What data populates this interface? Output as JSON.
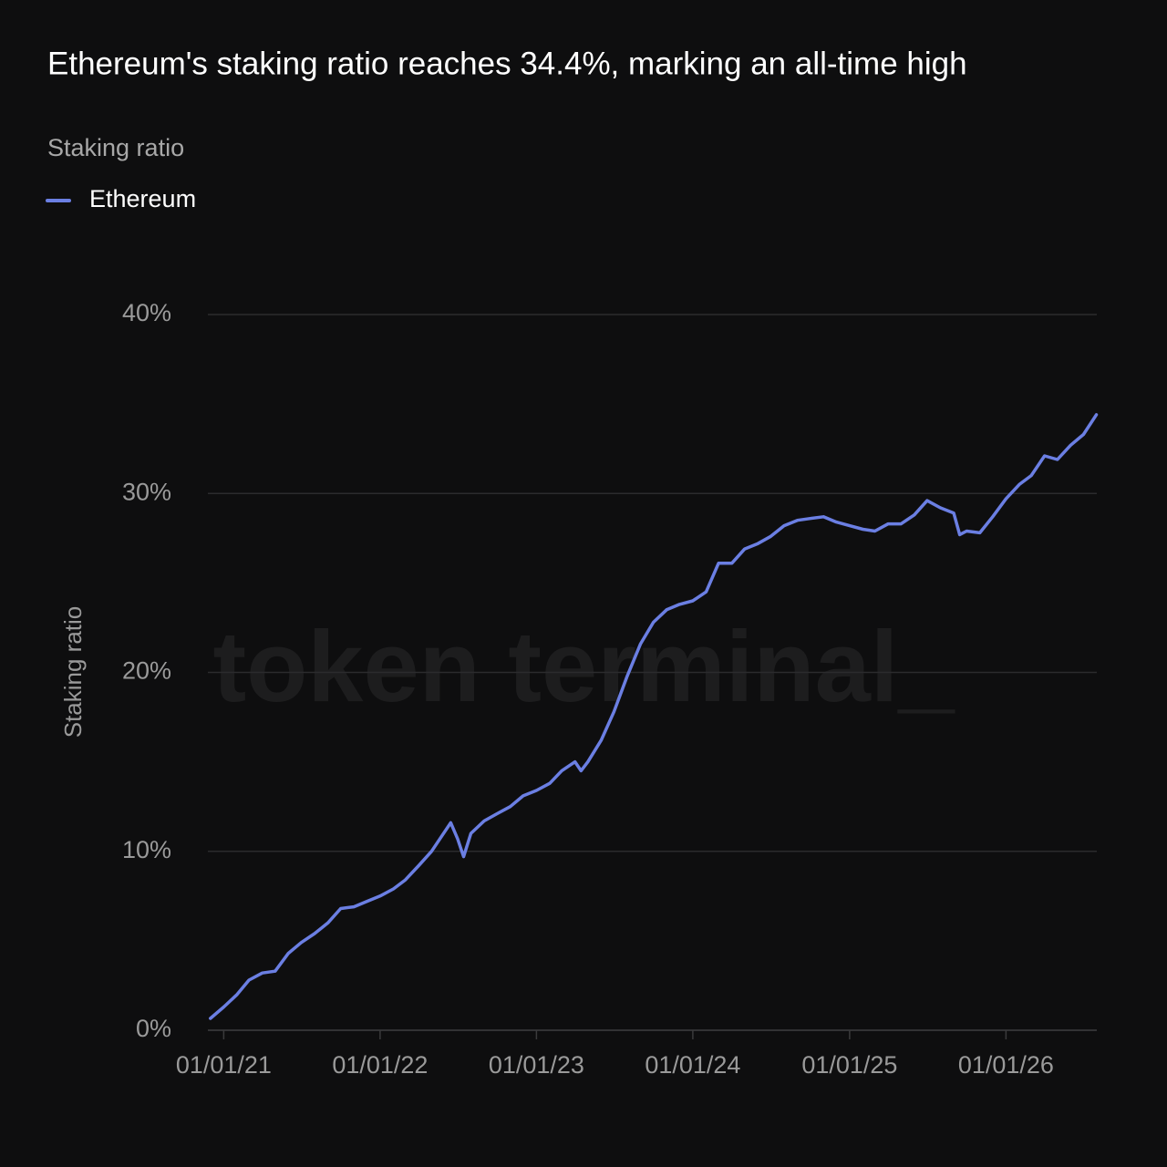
{
  "chart_data": {
    "type": "line",
    "title": "Ethereum's staking ratio reaches 34.4%, marking an all-time high",
    "subtitle": "Staking ratio",
    "y_label": "Staking ratio",
    "watermark": "token terminal_",
    "x": [
      "2020-12-01",
      "2021-01-01",
      "2021-02-01",
      "2021-03-01",
      "2021-04-01",
      "2021-05-01",
      "2021-06-01",
      "2021-07-01",
      "2021-08-01",
      "2021-09-01",
      "2021-10-01",
      "2021-11-01",
      "2021-12-01",
      "2022-01-01",
      "2022-02-01",
      "2022-03-01",
      "2022-04-01",
      "2022-05-01",
      "2022-06-01",
      "2022-06-15",
      "2022-07-01",
      "2022-07-15",
      "2022-08-01",
      "2022-09-01",
      "2022-10-01",
      "2022-11-01",
      "2022-12-01",
      "2023-01-01",
      "2023-02-01",
      "2023-03-01",
      "2023-04-01",
      "2023-04-15",
      "2023-05-01",
      "2023-06-01",
      "2023-07-01",
      "2023-08-01",
      "2023-09-01",
      "2023-10-01",
      "2023-11-01",
      "2023-12-01",
      "2024-01-01",
      "2024-02-01",
      "2024-03-01",
      "2024-04-01",
      "2024-05-01",
      "2024-06-01",
      "2024-07-01",
      "2024-08-01",
      "2024-09-01",
      "2024-10-01",
      "2024-11-01",
      "2024-12-01",
      "2025-01-01",
      "2025-02-01",
      "2025-03-01",
      "2025-04-01",
      "2025-05-01",
      "2025-06-01",
      "2025-07-01",
      "2025-08-01",
      "2025-09-01",
      "2025-09-15",
      "2025-10-01",
      "2025-11-01",
      "2025-12-01",
      "2026-01-01",
      "2026-02-01",
      "2026-03-01",
      "2026-04-01",
      "2026-05-01",
      "2026-06-01",
      "2026-07-01",
      "2026-07-31"
    ],
    "series": [
      {
        "name": "Ethereum",
        "color": "#6b7fe3",
        "values": [
          0.66,
          1.3,
          2.0,
          2.8,
          3.2,
          3.3,
          4.3,
          4.9,
          5.4,
          6.0,
          6.8,
          6.9,
          7.2,
          7.5,
          7.9,
          8.4,
          9.2,
          10.0,
          11.1,
          11.6,
          10.7,
          9.7,
          11.0,
          11.7,
          12.1,
          12.5,
          13.1,
          13.4,
          13.8,
          14.5,
          15.0,
          14.5,
          15.0,
          16.2,
          17.8,
          19.8,
          21.6,
          22.8,
          23.5,
          23.8,
          24.0,
          24.5,
          26.1,
          26.1,
          26.9,
          27.2,
          27.6,
          28.2,
          28.5,
          28.6,
          28.7,
          28.4,
          28.2,
          28.0,
          27.9,
          28.3,
          28.3,
          28.8,
          29.6,
          29.2,
          28.9,
          27.7,
          27.9,
          27.8,
          28.7,
          29.7,
          30.5,
          31.0,
          32.1,
          31.9,
          32.7,
          33.3,
          34.4
        ]
      }
    ],
    "xlim": [
      "2020-11-25",
      "2026-08-01"
    ],
    "xticks": [
      {
        "value": "2021-01-01",
        "label": "01/01/21"
      },
      {
        "value": "2022-01-01",
        "label": "01/01/22"
      },
      {
        "value": "2023-01-01",
        "label": "01/01/23"
      },
      {
        "value": "2024-01-01",
        "label": "01/01/24"
      },
      {
        "value": "2025-01-01",
        "label": "01/01/25"
      },
      {
        "value": "2026-01-01",
        "label": "01/01/26"
      }
    ],
    "ylim": [
      0,
      40
    ],
    "yticks": [
      {
        "value": 0,
        "label": "0%"
      },
      {
        "value": 10,
        "label": "10%"
      },
      {
        "value": 20,
        "label": "20%"
      },
      {
        "value": 30,
        "label": "30%"
      },
      {
        "value": 40,
        "label": "40%"
      }
    ],
    "grid": true
  }
}
